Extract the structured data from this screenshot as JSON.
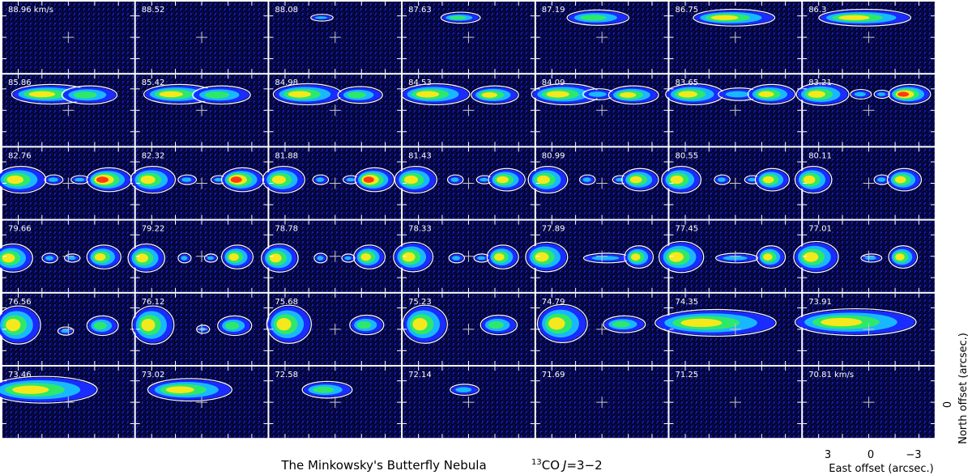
{
  "chart_data": {
    "type": "heatmap",
    "title": "The Minkowsky's Butterfly Nebula",
    "line_label": {
      "isotope": "13",
      "molecule": "CO",
      "transition_symbol": "J",
      "transition": "=3−2"
    },
    "grid": {
      "rows": 6,
      "cols": 7
    },
    "velocity_unit": "km/s",
    "channels": [
      {
        "label": "88.96 km/s",
        "v": 88.96,
        "emission": []
      },
      {
        "label": "88.52",
        "v": 88.52,
        "emission": []
      },
      {
        "label": "88.08",
        "v": 88.08,
        "emission": [
          {
            "dx": -0.2,
            "dy": -0.55,
            "w": 0.15,
            "h": 0.06,
            "level": 1
          }
        ]
      },
      {
        "label": "87.63",
        "v": 87.63,
        "emission": [
          {
            "dx": -0.12,
            "dy": -0.55,
            "w": 0.28,
            "h": 0.12,
            "level": 2
          }
        ]
      },
      {
        "label": "87.19",
        "v": 87.19,
        "emission": [
          {
            "dx": -0.06,
            "dy": -0.55,
            "w": 0.45,
            "h": 0.18,
            "level": 2
          }
        ]
      },
      {
        "label": "86.75",
        "v": 86.75,
        "emission": [
          {
            "dx": -0.02,
            "dy": -0.55,
            "w": 0.6,
            "h": 0.2,
            "level": 3
          }
        ]
      },
      {
        "label": "86.3",
        "v": 86.3,
        "emission": [
          {
            "dx": -0.06,
            "dy": -0.55,
            "w": 0.68,
            "h": 0.2,
            "level": 3
          }
        ]
      },
      {
        "label": "85.86",
        "v": 85.86,
        "emission": [
          {
            "dx": -0.26,
            "dy": -0.45,
            "w": 0.58,
            "h": 0.24,
            "level": 3
          },
          {
            "dx": 0.32,
            "dy": -0.43,
            "w": 0.4,
            "h": 0.22,
            "level": 2
          }
        ]
      },
      {
        "label": "85.42",
        "v": 85.42,
        "emission": [
          {
            "dx": -0.34,
            "dy": -0.45,
            "w": 0.52,
            "h": 0.24,
            "level": 3
          },
          {
            "dx": 0.3,
            "dy": -0.43,
            "w": 0.42,
            "h": 0.22,
            "level": 2
          }
        ]
      },
      {
        "label": "84.98",
        "v": 84.98,
        "emission": [
          {
            "dx": -0.42,
            "dy": -0.45,
            "w": 0.5,
            "h": 0.26,
            "level": 3
          },
          {
            "dx": 0.38,
            "dy": -0.43,
            "w": 0.32,
            "h": 0.2,
            "level": 2
          }
        ]
      },
      {
        "label": "84.53",
        "v": 84.53,
        "emission": [
          {
            "dx": -0.5,
            "dy": -0.45,
            "w": 0.5,
            "h": 0.26,
            "level": 3
          },
          {
            "dx": 0.4,
            "dy": -0.43,
            "w": 0.34,
            "h": 0.22,
            "level": 3
          }
        ]
      },
      {
        "label": "84.09",
        "v": 84.09,
        "emission": [
          {
            "dx": -0.55,
            "dy": -0.45,
            "w": 0.5,
            "h": 0.26,
            "level": 3
          },
          {
            "dx": -0.05,
            "dy": -0.45,
            "w": 0.22,
            "h": 0.12,
            "level": 1
          },
          {
            "dx": 0.48,
            "dy": -0.43,
            "w": 0.36,
            "h": 0.22,
            "level": 3
          }
        ]
      },
      {
        "label": "83.65",
        "v": 83.65,
        "emission": [
          {
            "dx": -0.62,
            "dy": -0.45,
            "w": 0.42,
            "h": 0.26,
            "level": 3
          },
          {
            "dx": 0.06,
            "dy": -0.45,
            "w": 0.3,
            "h": 0.14,
            "level": 1
          },
          {
            "dx": 0.55,
            "dy": -0.45,
            "w": 0.34,
            "h": 0.24,
            "level": 3
          }
        ]
      },
      {
        "label": "83.21",
        "v": 83.21,
        "emission": [
          {
            "dx": -0.7,
            "dy": -0.45,
            "w": 0.38,
            "h": 0.28,
            "level": 3
          },
          {
            "dx": -0.12,
            "dy": -0.45,
            "w": 0.14,
            "h": 0.1,
            "level": 1
          },
          {
            "dx": 0.2,
            "dy": -0.45,
            "w": 0.1,
            "h": 0.08,
            "level": 1
          },
          {
            "dx": 0.62,
            "dy": -0.45,
            "w": 0.3,
            "h": 0.24,
            "level": 4
          }
        ]
      },
      {
        "label": "82.76",
        "v": 82.76,
        "emission": [
          {
            "dx": -0.72,
            "dy": -0.1,
            "w": 0.36,
            "h": 0.34,
            "level": 3
          },
          {
            "dx": -0.22,
            "dy": -0.1,
            "w": 0.12,
            "h": 0.1,
            "level": 1
          },
          {
            "dx": 0.18,
            "dy": -0.1,
            "w": 0.12,
            "h": 0.08,
            "level": 1
          },
          {
            "dx": 0.62,
            "dy": -0.1,
            "w": 0.32,
            "h": 0.3,
            "level": 4
          }
        ]
      },
      {
        "label": "82.32",
        "v": 82.32,
        "emission": [
          {
            "dx": -0.74,
            "dy": -0.1,
            "w": 0.32,
            "h": 0.34,
            "level": 3
          },
          {
            "dx": -0.22,
            "dy": -0.1,
            "w": 0.12,
            "h": 0.1,
            "level": 1
          },
          {
            "dx": 0.26,
            "dy": -0.1,
            "w": 0.1,
            "h": 0.08,
            "level": 1
          },
          {
            "dx": 0.62,
            "dy": -0.1,
            "w": 0.3,
            "h": 0.3,
            "level": 4
          }
        ]
      },
      {
        "label": "81.88",
        "v": 81.88,
        "emission": [
          {
            "dx": -0.78,
            "dy": -0.1,
            "w": 0.3,
            "h": 0.34,
            "level": 3
          },
          {
            "dx": -0.22,
            "dy": -0.1,
            "w": 0.1,
            "h": 0.1,
            "level": 1
          },
          {
            "dx": 0.24,
            "dy": -0.1,
            "w": 0.1,
            "h": 0.08,
            "level": 1
          },
          {
            "dx": 0.6,
            "dy": -0.1,
            "w": 0.28,
            "h": 0.3,
            "level": 4
          }
        ]
      },
      {
        "label": "81.43",
        "v": 81.43,
        "emission": [
          {
            "dx": -0.8,
            "dy": -0.1,
            "w": 0.3,
            "h": 0.34,
            "level": 3
          },
          {
            "dx": -0.2,
            "dy": -0.1,
            "w": 0.1,
            "h": 0.1,
            "level": 1
          },
          {
            "dx": 0.24,
            "dy": -0.1,
            "w": 0.1,
            "h": 0.08,
            "level": 1
          },
          {
            "dx": 0.58,
            "dy": -0.1,
            "w": 0.26,
            "h": 0.28,
            "level": 3
          }
        ]
      },
      {
        "label": "80.99",
        "v": 80.99,
        "emission": [
          {
            "dx": -0.82,
            "dy": -0.1,
            "w": 0.28,
            "h": 0.34,
            "level": 3
          },
          {
            "dx": -0.22,
            "dy": -0.1,
            "w": 0.1,
            "h": 0.1,
            "level": 1
          },
          {
            "dx": 0.28,
            "dy": -0.1,
            "w": 0.1,
            "h": 0.08,
            "level": 1
          },
          {
            "dx": 0.58,
            "dy": -0.1,
            "w": 0.26,
            "h": 0.28,
            "level": 3
          }
        ]
      },
      {
        "label": "80.55",
        "v": 80.55,
        "emission": [
          {
            "dx": -0.82,
            "dy": -0.1,
            "w": 0.28,
            "h": 0.34,
            "level": 3
          },
          {
            "dx": -0.2,
            "dy": -0.1,
            "w": 0.1,
            "h": 0.1,
            "level": 1
          },
          {
            "dx": 0.26,
            "dy": -0.1,
            "w": 0.1,
            "h": 0.08,
            "level": 1
          },
          {
            "dx": 0.56,
            "dy": -0.1,
            "w": 0.24,
            "h": 0.28,
            "level": 3
          }
        ]
      },
      {
        "label": "80.11",
        "v": 80.11,
        "emission": [
          {
            "dx": -0.84,
            "dy": -0.1,
            "w": 0.26,
            "h": 0.34,
            "level": 3
          },
          {
            "dx": 0.2,
            "dy": -0.1,
            "w": 0.1,
            "h": 0.1,
            "level": 1
          },
          {
            "dx": 0.54,
            "dy": -0.1,
            "w": 0.24,
            "h": 0.28,
            "level": 3
          }
        ]
      },
      {
        "label": "79.66",
        "v": 79.66,
        "emission": [
          {
            "dx": -0.84,
            "dy": 0.05,
            "w": 0.28,
            "h": 0.36,
            "level": 3
          },
          {
            "dx": -0.28,
            "dy": 0.05,
            "w": 0.1,
            "h": 0.1,
            "level": 1
          },
          {
            "dx": 0.06,
            "dy": 0.05,
            "w": 0.1,
            "h": 0.08,
            "level": 1
          },
          {
            "dx": 0.54,
            "dy": 0.02,
            "w": 0.24,
            "h": 0.3,
            "level": 3
          }
        ]
      },
      {
        "label": "79.22",
        "v": 79.22,
        "emission": [
          {
            "dx": -0.84,
            "dy": 0.05,
            "w": 0.26,
            "h": 0.36,
            "level": 3
          },
          {
            "dx": -0.26,
            "dy": 0.05,
            "w": 0.08,
            "h": 0.1,
            "level": 1
          },
          {
            "dx": 0.14,
            "dy": 0.05,
            "w": 0.08,
            "h": 0.08,
            "level": 1
          },
          {
            "dx": 0.54,
            "dy": 0.02,
            "w": 0.22,
            "h": 0.3,
            "level": 3
          }
        ]
      },
      {
        "label": "78.78",
        "v": 78.78,
        "emission": [
          {
            "dx": -0.84,
            "dy": 0.05,
            "w": 0.26,
            "h": 0.36,
            "level": 3
          },
          {
            "dx": -0.22,
            "dy": 0.05,
            "w": 0.08,
            "h": 0.1,
            "level": 1
          },
          {
            "dx": 0.2,
            "dy": 0.05,
            "w": 0.08,
            "h": 0.08,
            "level": 1
          },
          {
            "dx": 0.52,
            "dy": 0.02,
            "w": 0.22,
            "h": 0.3,
            "level": 3
          }
        ]
      },
      {
        "label": "78.33",
        "v": 78.33,
        "emission": [
          {
            "dx": -0.84,
            "dy": 0.02,
            "w": 0.28,
            "h": 0.38,
            "level": 3
          },
          {
            "dx": -0.18,
            "dy": 0.05,
            "w": 0.1,
            "h": 0.1,
            "level": 1
          },
          {
            "dx": 0.2,
            "dy": 0.05,
            "w": 0.1,
            "h": 0.08,
            "level": 1
          },
          {
            "dx": 0.52,
            "dy": 0.02,
            "w": 0.22,
            "h": 0.3,
            "level": 3
          }
        ]
      },
      {
        "label": "77.89",
        "v": 77.89,
        "emission": [
          {
            "dx": -0.84,
            "dy": 0.02,
            "w": 0.3,
            "h": 0.38,
            "level": 3
          },
          {
            "dx": 0.08,
            "dy": 0.05,
            "w": 0.34,
            "h": 0.1,
            "level": 1
          },
          {
            "dx": 0.56,
            "dy": 0.02,
            "w": 0.2,
            "h": 0.28,
            "level": 3
          }
        ]
      },
      {
        "label": "77.45",
        "v": 77.45,
        "emission": [
          {
            "dx": -0.82,
            "dy": 0.02,
            "w": 0.32,
            "h": 0.4,
            "level": 3
          },
          {
            "dx": 0.02,
            "dy": 0.05,
            "w": 0.3,
            "h": 0.1,
            "level": 1
          },
          {
            "dx": 0.54,
            "dy": 0.02,
            "w": 0.2,
            "h": 0.28,
            "level": 3
          }
        ]
      },
      {
        "label": "77.01",
        "v": 77.01,
        "emission": [
          {
            "dx": -0.8,
            "dy": 0.02,
            "w": 0.32,
            "h": 0.4,
            "level": 3
          },
          {
            "dx": 0.04,
            "dy": 0.05,
            "w": 0.14,
            "h": 0.08,
            "level": 1
          },
          {
            "dx": 0.52,
            "dy": 0.02,
            "w": 0.2,
            "h": 0.28,
            "level": 3
          }
        ]
      },
      {
        "label": "76.56",
        "v": 76.56,
        "emission": [
          {
            "dx": -0.76,
            "dy": -0.12,
            "w": 0.32,
            "h": 0.5,
            "level": 3
          },
          {
            "dx": -0.04,
            "dy": 0.05,
            "w": 0.1,
            "h": 0.08,
            "level": 1
          },
          {
            "dx": 0.52,
            "dy": -0.1,
            "w": 0.22,
            "h": 0.24,
            "level": 2
          }
        ]
      },
      {
        "label": "76.12",
        "v": 76.12,
        "emission": [
          {
            "dx": -0.74,
            "dy": -0.12,
            "w": 0.3,
            "h": 0.5,
            "level": 3
          },
          {
            "dx": 0.02,
            "dy": 0.0,
            "w": 0.08,
            "h": 0.08,
            "level": 1
          },
          {
            "dx": 0.5,
            "dy": -0.1,
            "w": 0.24,
            "h": 0.24,
            "level": 2
          }
        ]
      },
      {
        "label": "75.68",
        "v": 75.68,
        "emission": [
          {
            "dx": -0.7,
            "dy": -0.14,
            "w": 0.32,
            "h": 0.5,
            "level": 3
          },
          {
            "dx": 0.48,
            "dy": -0.12,
            "w": 0.24,
            "h": 0.24,
            "level": 2
          }
        ]
      },
      {
        "label": "75.23",
        "v": 75.23,
        "emission": [
          {
            "dx": -0.66,
            "dy": -0.14,
            "w": 0.32,
            "h": 0.5,
            "level": 3
          },
          {
            "dx": 0.46,
            "dy": -0.12,
            "w": 0.26,
            "h": 0.24,
            "level": 2
          }
        ]
      },
      {
        "label": "74.79",
        "v": 74.79,
        "emission": [
          {
            "dx": -0.6,
            "dy": -0.16,
            "w": 0.36,
            "h": 0.5,
            "level": 3
          },
          {
            "dx": 0.34,
            "dy": -0.14,
            "w": 0.3,
            "h": 0.2,
            "level": 2
          }
        ]
      },
      {
        "label": "74.35",
        "v": 74.35,
        "emission": [
          {
            "dx": -0.3,
            "dy": -0.18,
            "w": 0.9,
            "h": 0.34,
            "level": 3
          }
        ]
      },
      {
        "label": "73.91",
        "v": 73.91,
        "emission": [
          {
            "dx": -0.2,
            "dy": -0.2,
            "w": 0.9,
            "h": 0.34,
            "level": 3
          }
        ]
      },
      {
        "label": "73.46",
        "v": 73.46,
        "emission": [
          {
            "dx": -0.38,
            "dy": -0.35,
            "w": 0.8,
            "h": 0.34,
            "level": 3
          }
        ]
      },
      {
        "label": "73.02",
        "v": 73.02,
        "emission": [
          {
            "dx": -0.18,
            "dy": -0.35,
            "w": 0.62,
            "h": 0.28,
            "level": 3
          }
        ]
      },
      {
        "label": "72.58",
        "v": 72.58,
        "emission": [
          {
            "dx": -0.12,
            "dy": -0.35,
            "w": 0.36,
            "h": 0.2,
            "level": 2
          }
        ]
      },
      {
        "label": "72.14",
        "v": 72.14,
        "emission": [
          {
            "dx": -0.06,
            "dy": -0.35,
            "w": 0.2,
            "h": 0.12,
            "level": 1
          }
        ]
      },
      {
        "label": "71.69",
        "v": 71.69,
        "emission": []
      },
      {
        "label": "71.25",
        "v": 71.25,
        "emission": []
      },
      {
        "label": "70.81 km/s",
        "v": 70.81,
        "emission": []
      }
    ],
    "axes": {
      "x": {
        "label": "East offset (arcsec.)",
        "ticks": [
          "3",
          "0",
          "−3"
        ]
      },
      "y": {
        "label": "North offset (arcsec.)",
        "ticks": [
          "0"
        ]
      }
    },
    "colormap": {
      "background": "#05052a",
      "levels": [
        "#1a2cff",
        "#18b8ff",
        "#2ee86a",
        "#f5e81c",
        "#ff3a10"
      ],
      "contour": "#ffffff",
      "marker": "#c8c8c8"
    }
  }
}
